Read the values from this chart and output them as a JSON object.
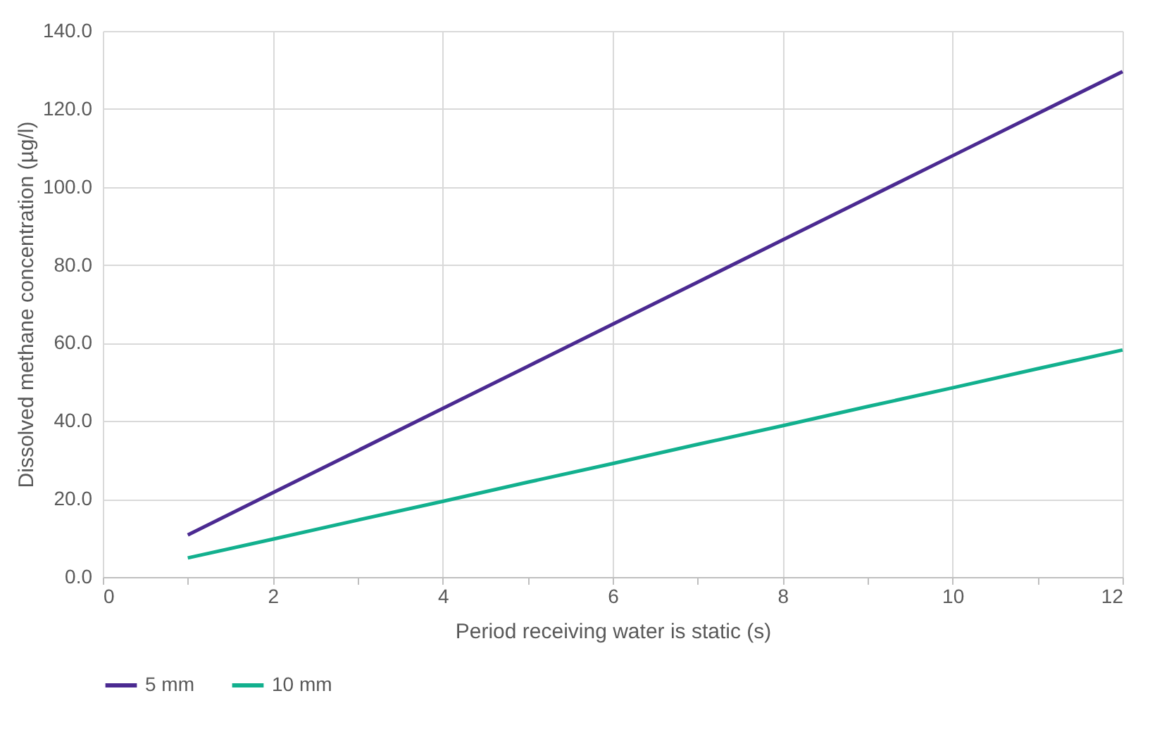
{
  "chart_data": {
    "type": "line",
    "xlabel": "Period receiving water is static (s)",
    "ylabel": "Dissolved methane concentration (µg/l)",
    "x": [
      1,
      2,
      3,
      4,
      5,
      6,
      7,
      8,
      9,
      10,
      11,
      12
    ],
    "series": [
      {
        "name": "5 mm",
        "color": "#4b2a91",
        "values": [
          10.8,
          21.6,
          32.4,
          43.2,
          54.0,
          64.8,
          75.6,
          86.4,
          97.2,
          108.0,
          118.8,
          129.6
        ]
      },
      {
        "name": "10 mm",
        "color": "#12b08e",
        "values": [
          4.9,
          9.7,
          14.6,
          19.4,
          24.3,
          29.1,
          34.0,
          38.8,
          43.7,
          48.5,
          53.4,
          58.2
        ]
      }
    ],
    "xlim": [
      0,
      12
    ],
    "xticks": [
      0,
      {
        "value": 1,
        "label": null
      },
      2,
      {
        "value": 3,
        "label": null
      },
      4,
      {
        "value": 5,
        "label": null
      },
      6,
      {
        "value": 7,
        "label": null
      },
      8,
      {
        "value": 9,
        "label": null
      },
      10,
      {
        "value": 11,
        "label": null
      },
      12
    ],
    "ylim": [
      0,
      140
    ],
    "yticks": [
      {
        "value": 0,
        "label": "0.0"
      },
      {
        "value": 20,
        "label": "20.0"
      },
      {
        "value": 40,
        "label": "40.0"
      },
      {
        "value": 60,
        "label": "60.0"
      },
      {
        "value": 80,
        "label": "80.0"
      },
      {
        "value": 100,
        "label": "100.0"
      },
      {
        "value": 120,
        "label": "120.0"
      },
      {
        "value": 140,
        "label": "140.0"
      }
    ],
    "grid": true,
    "legend": "bottom",
    "marker": "none",
    "line_style": "solid"
  }
}
